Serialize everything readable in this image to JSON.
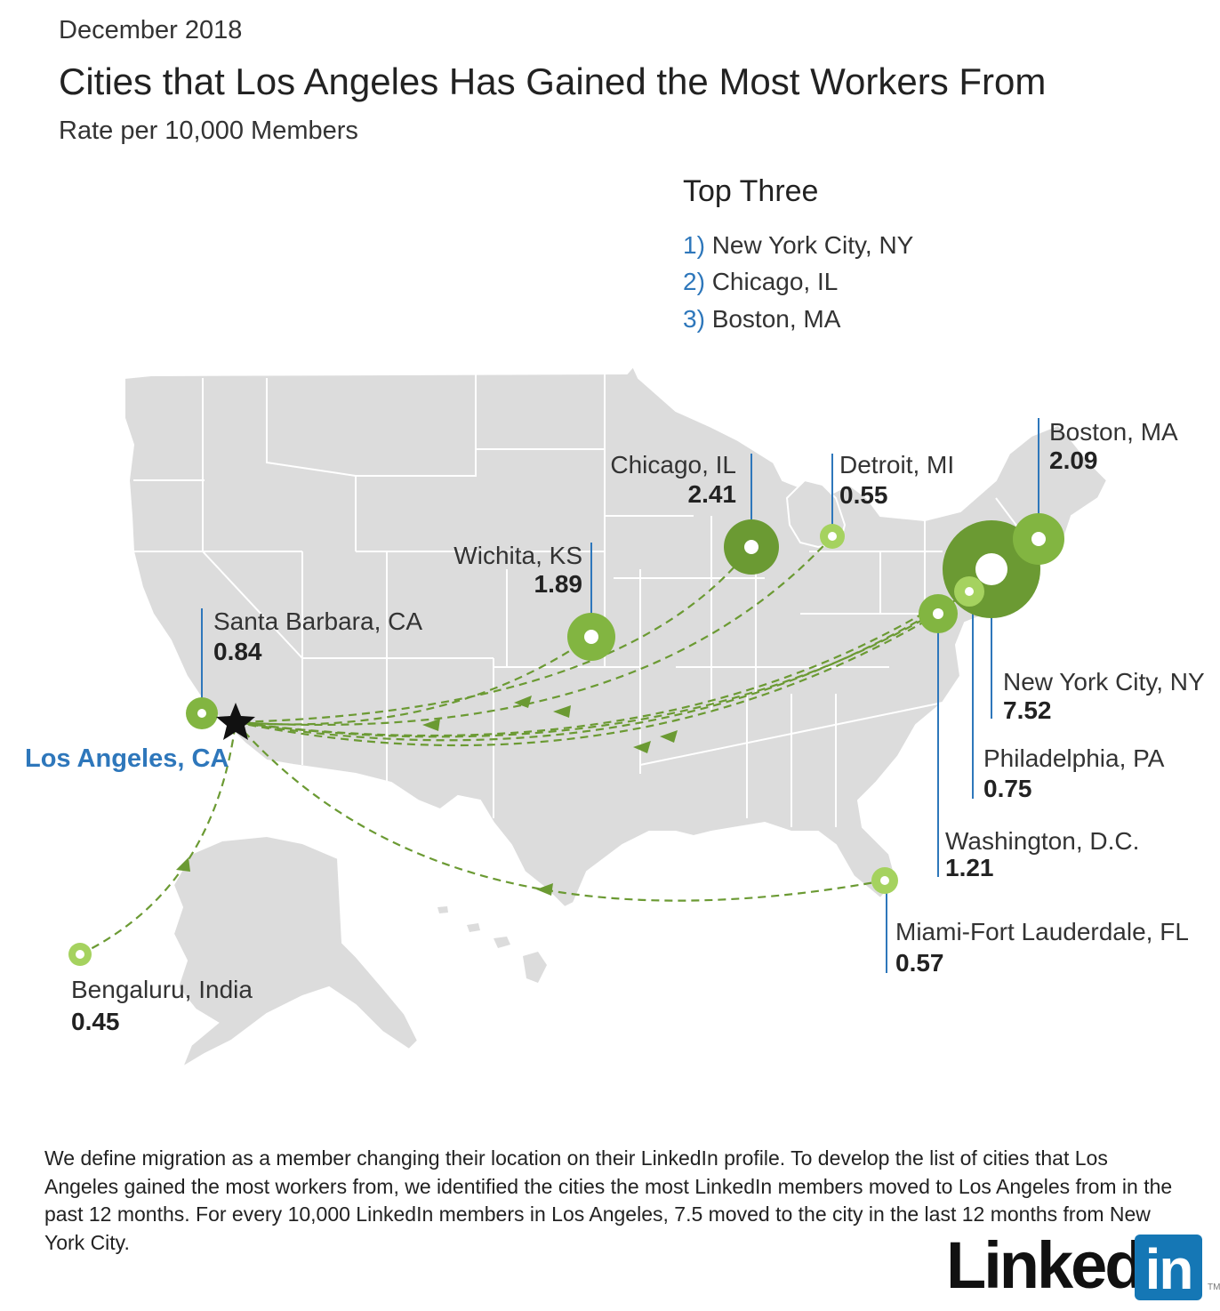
{
  "header": {
    "date": "December 2018",
    "title": "Cities that Los Angeles Has Gained the Most Workers From",
    "subtitle": "Rate per 10,000 Members"
  },
  "top_three": {
    "heading": "Top Three",
    "items": [
      {
        "rank": "1)",
        "city": "New York City, NY"
      },
      {
        "rank": "2)",
        "city": "Chicago, IL"
      },
      {
        "rank": "3)",
        "city": "Boston, MA"
      }
    ]
  },
  "origin": {
    "label": "Los Angeles, CA",
    "marker": "star-icon"
  },
  "cities": [
    {
      "name": "New York City, NY",
      "value": "7.52"
    },
    {
      "name": "Chicago, IL",
      "value": "2.41"
    },
    {
      "name": "Boston, MA",
      "value": "2.09"
    },
    {
      "name": "Wichita, KS",
      "value": "1.89"
    },
    {
      "name": "Washington, D.C.",
      "value": "1.21"
    },
    {
      "name": "Santa Barbara, CA",
      "value": "0.84"
    },
    {
      "name": "Philadelphia, PA",
      "value": "0.75"
    },
    {
      "name": "Miami-Fort Lauderdale, FL",
      "value": "0.57"
    },
    {
      "name": "Detroit, MI",
      "value": "0.55"
    },
    {
      "name": "Bengaluru, India",
      "value": "0.45"
    }
  ],
  "colors": {
    "accent_blue": "#2e77bb",
    "bubble_dark": "#6b9a33",
    "bubble_mid": "#82b541",
    "bubble_light": "#a5d25f",
    "land": "#dcdcdc",
    "borders": "#ffffff"
  },
  "footnote": "We define migration as a member changing their location on their LinkedIn profile. To develop the list of cities that Los Angeles gained the most workers from, we identified the cities the most LinkedIn members moved to Los Angeles from in the past 12 months. For every 10,000 LinkedIn members in Los Angeles, 7.5 moved to the city in the last 12 months from New York City.",
  "logo": {
    "text": "Linked",
    "box": "in",
    "tm": "TM"
  }
}
